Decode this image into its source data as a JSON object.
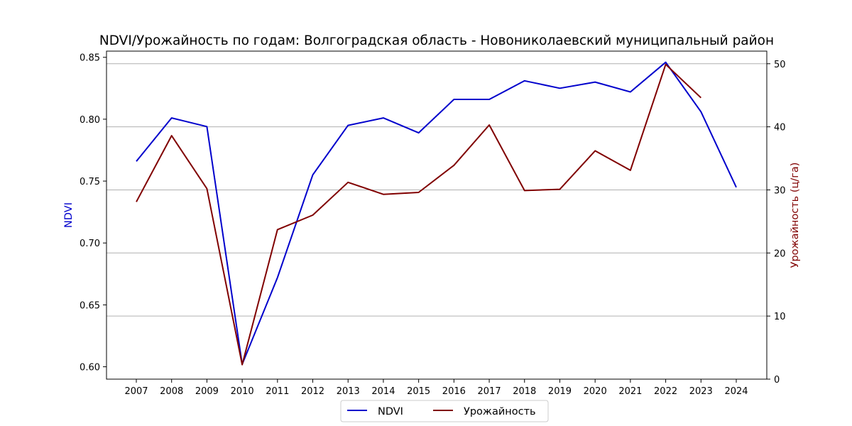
{
  "chart_data": {
    "type": "line",
    "title": "NDVI/Урожайность по годам: Волгоградская область - Новониколаевский муниципальный район",
    "x": [
      "2007",
      "2008",
      "2009",
      "2010",
      "2011",
      "2012",
      "2013",
      "2014",
      "2015",
      "2016",
      "2017",
      "2018",
      "2019",
      "2020",
      "2021",
      "2022",
      "2023",
      "2024"
    ],
    "ylabel_left": "NDVI",
    "ylabel_right": "Урожайность (ц/га)",
    "ylim_left": [
      0.59,
      0.855
    ],
    "yticks_left": [
      "0.60",
      "0.65",
      "0.70",
      "0.75",
      "0.80",
      "0.85"
    ],
    "ylim_right": [
      0,
      52
    ],
    "yticks_right": [
      "0",
      "10",
      "20",
      "30",
      "40",
      "50"
    ],
    "grid": "horizontal (right axis)",
    "legend_position": "bottom-center",
    "series": [
      {
        "name": "NDVI",
        "axis": "left",
        "color": "#0000cc",
        "values": [
          0.766,
          0.801,
          0.794,
          0.602,
          0.672,
          0.755,
          0.795,
          0.801,
          0.789,
          0.816,
          0.816,
          0.831,
          0.825,
          0.83,
          0.822,
          0.846,
          0.806,
          0.745
        ]
      },
      {
        "name": "Урожайность",
        "axis": "right",
        "color": "#800000",
        "values": [
          28.1,
          38.6,
          30.2,
          2.3,
          23.7,
          26.0,
          31.2,
          29.3,
          29.6,
          33.9,
          40.3,
          29.9,
          30.1,
          36.2,
          33.1,
          49.9,
          44.6,
          null
        ]
      }
    ]
  }
}
